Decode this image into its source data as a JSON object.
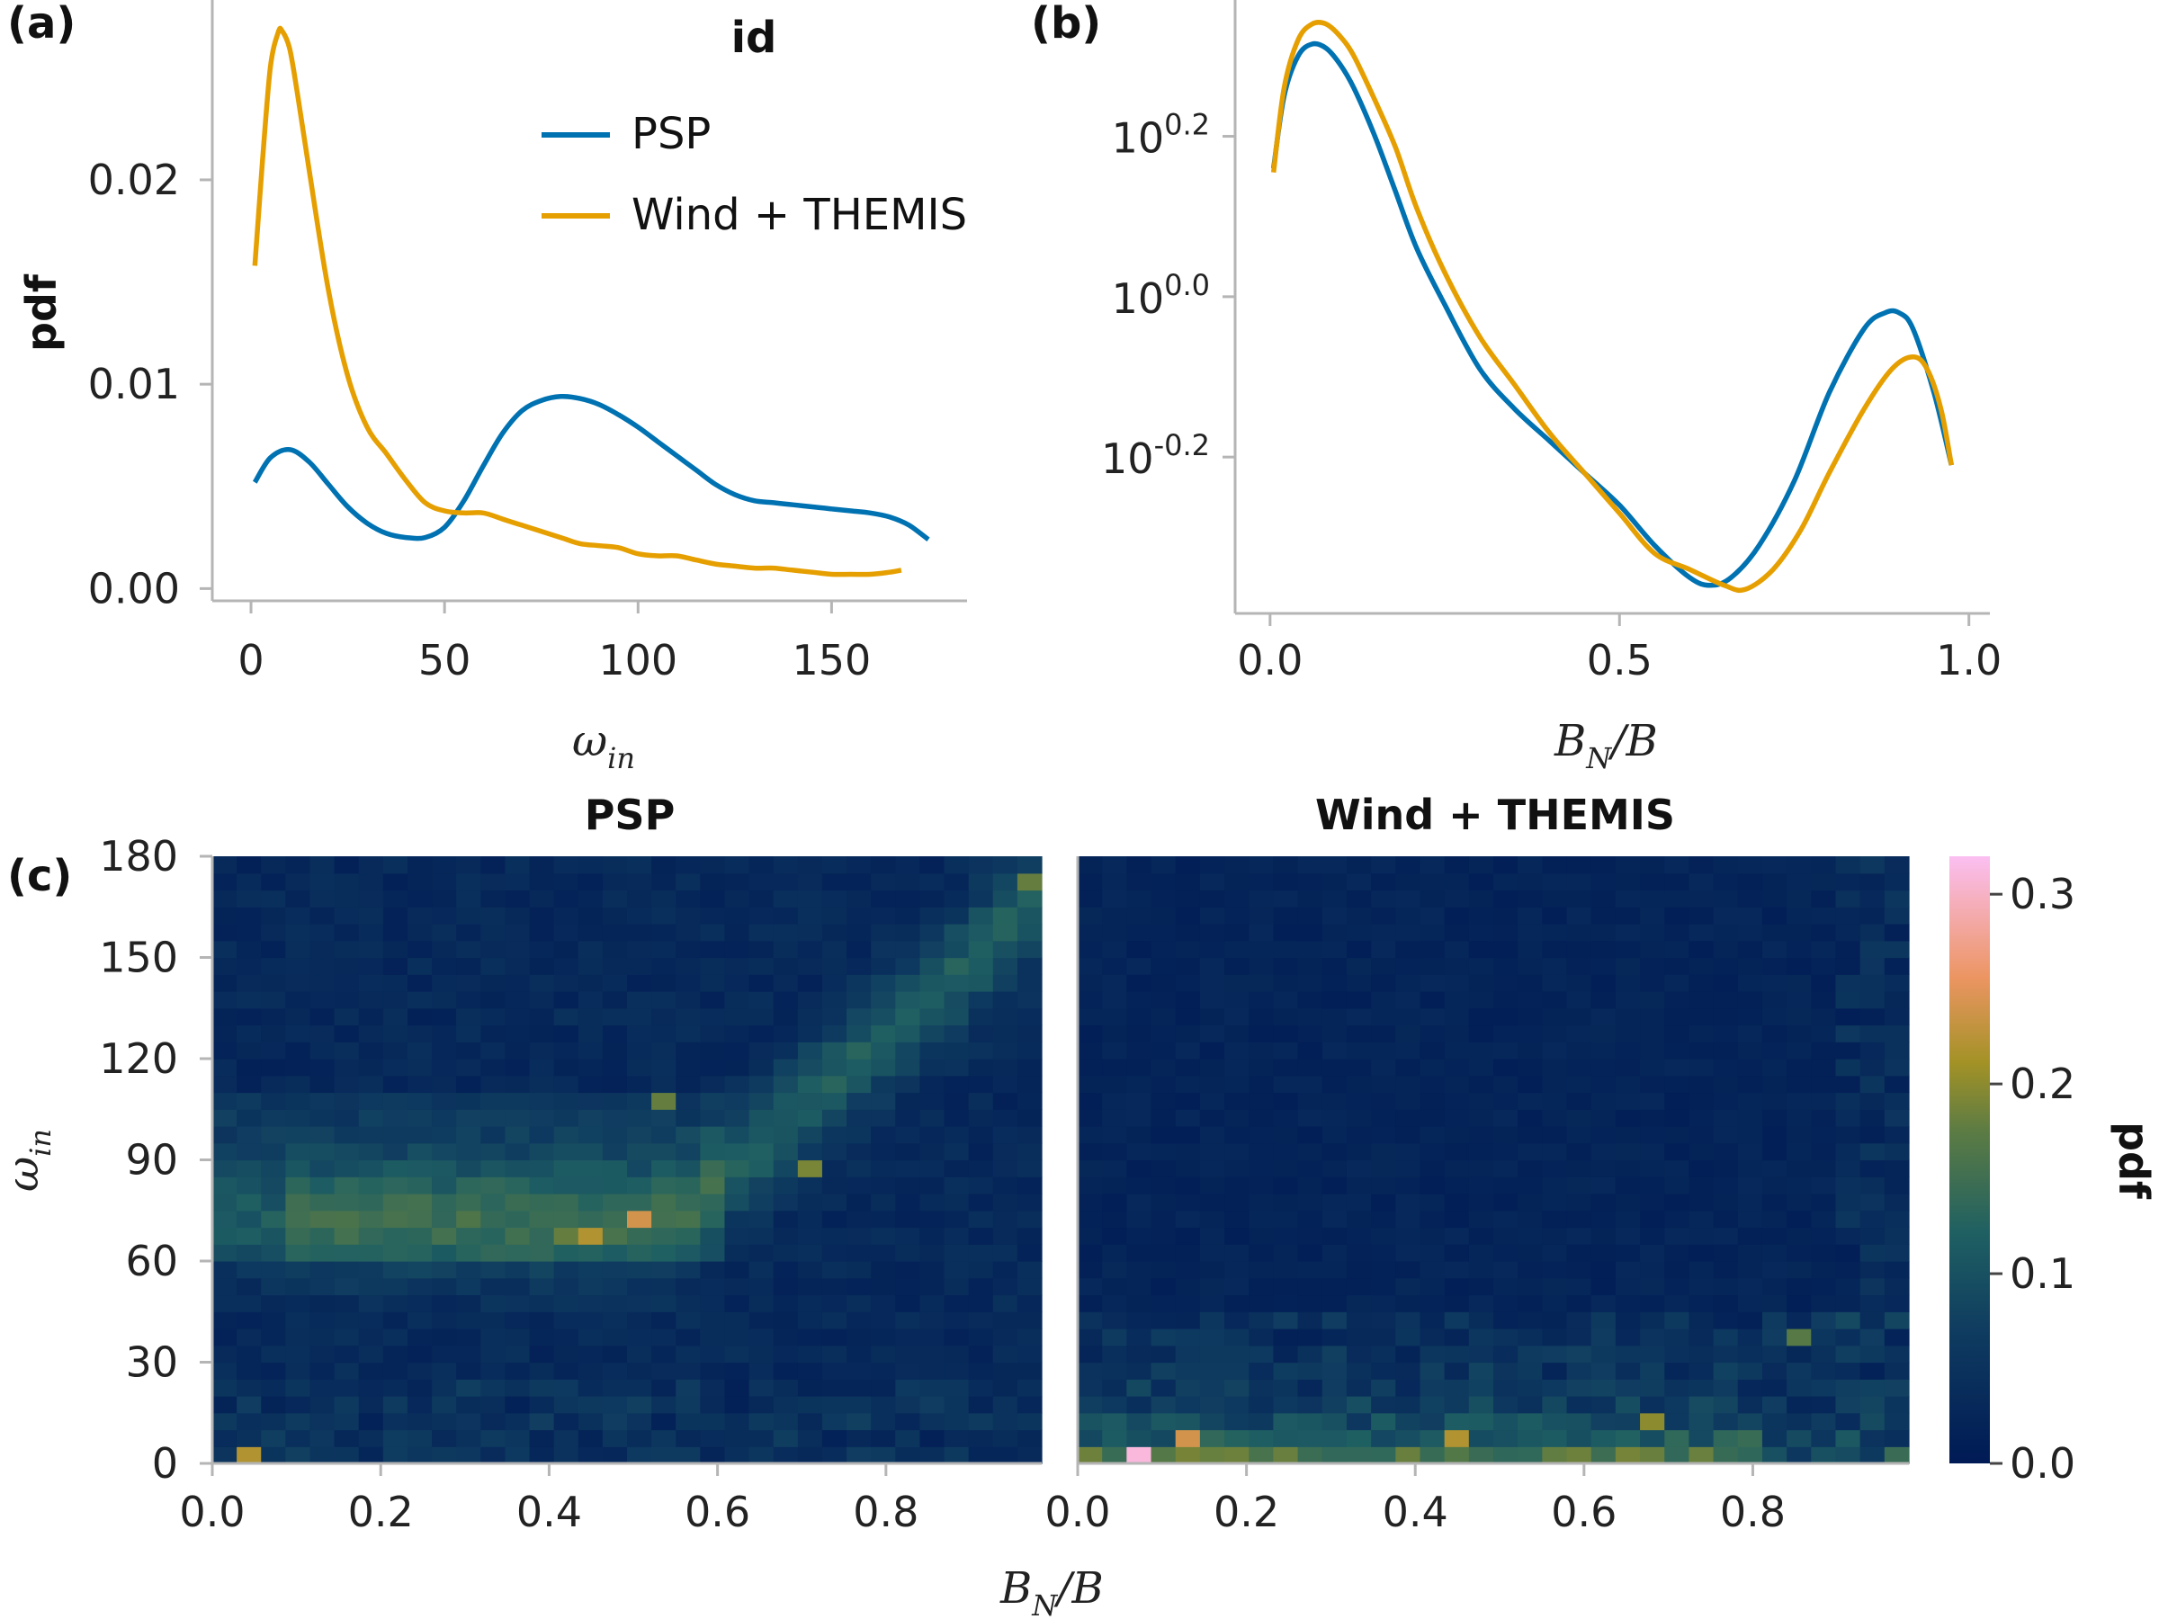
{
  "colors": {
    "psp": "#0072b2",
    "wind": "#e69f00"
  },
  "chart_data": [
    {
      "panel": "(a)",
      "type": "line",
      "xlabel": "ω_in",
      "ylabel": "pdf",
      "xlim": [
        -10,
        185
      ],
      "ylim": [
        -0.0006,
        0.0288
      ],
      "xticks": [
        "0",
        "50",
        "100",
        "150"
      ],
      "xtick_values": [
        0,
        50,
        100,
        150
      ],
      "yticks": [
        "0.00",
        "0.01",
        "0.02"
      ],
      "ytick_values": [
        0,
        0.01,
        0.02
      ],
      "legend": {
        "title": "id",
        "placement": "top-right",
        "entries": [
          "PSP",
          "Wind + THEMIS"
        ]
      },
      "series": [
        {
          "name": "PSP",
          "color": "#0072b2",
          "x": [
            1,
            5,
            10,
            15,
            20,
            25,
            30,
            35,
            40,
            45,
            50,
            55,
            60,
            65,
            70,
            75,
            80,
            85,
            90,
            95,
            100,
            105,
            110,
            115,
            120,
            125,
            130,
            135,
            140,
            145,
            150,
            155,
            160,
            165,
            170,
            175
          ],
          "y": [
            0.0052,
            0.0064,
            0.0068,
            0.0062,
            0.0051,
            0.004,
            0.0032,
            0.0027,
            0.0025,
            0.0025,
            0.003,
            0.0043,
            0.006,
            0.0076,
            0.0087,
            0.0092,
            0.0094,
            0.0093,
            0.009,
            0.0085,
            0.0079,
            0.0072,
            0.0065,
            0.0058,
            0.0051,
            0.0046,
            0.0043,
            0.0042,
            0.0041,
            0.004,
            0.0039,
            0.0038,
            0.0037,
            0.0035,
            0.0031,
            0.0024
          ]
        },
        {
          "name": "Wind + THEMIS",
          "color": "#e69f00",
          "x": [
            1,
            3,
            5,
            7,
            8,
            10,
            12,
            15,
            20,
            25,
            30,
            35,
            40,
            45,
            50,
            55,
            60,
            65,
            70,
            75,
            80,
            85,
            90,
            95,
            100,
            105,
            110,
            115,
            120,
            125,
            130,
            135,
            140,
            145,
            150,
            155,
            160,
            165,
            168
          ],
          "y": [
            0.0158,
            0.021,
            0.0255,
            0.0272,
            0.0273,
            0.0264,
            0.0242,
            0.0205,
            0.0146,
            0.0104,
            0.0079,
            0.0066,
            0.0053,
            0.0042,
            0.0038,
            0.0037,
            0.0037,
            0.0034,
            0.0031,
            0.0028,
            0.0025,
            0.0022,
            0.0021,
            0.002,
            0.0017,
            0.0016,
            0.0016,
            0.0014,
            0.0012,
            0.0011,
            0.001,
            0.001,
            0.0009,
            0.0008,
            0.0007,
            0.0007,
            0.0007,
            0.0008,
            0.0009
          ]
        }
      ]
    },
    {
      "panel": "(b)",
      "type": "line",
      "xlabel": "B_N/B",
      "yscale": "log",
      "xlim": [
        -0.05,
        1.03
      ],
      "ylim_log10": [
        -0.395,
        0.37
      ],
      "xticks": [
        "0.0",
        "0.5",
        "1.0"
      ],
      "xtick_values": [
        0,
        0.5,
        1.0
      ],
      "yticks": [
        "10^-0.2",
        "10^0.0",
        "10^0.2"
      ],
      "ytick_values_log10": [
        -0.2,
        0.0,
        0.2
      ],
      "series": [
        {
          "name": "PSP",
          "color": "#0072b2",
          "x": [
            0.005,
            0.02,
            0.04,
            0.06,
            0.08,
            0.1,
            0.12,
            0.15,
            0.18,
            0.21,
            0.25,
            0.3,
            0.35,
            0.4,
            0.45,
            0.5,
            0.55,
            0.6,
            0.63,
            0.66,
            0.7,
            0.75,
            0.8,
            0.85,
            0.88,
            0.9,
            0.92,
            0.95,
            0.975
          ],
          "log10y": [
            0.16,
            0.25,
            0.3,
            0.315,
            0.31,
            0.29,
            0.26,
            0.2,
            0.13,
            0.06,
            -0.01,
            -0.09,
            -0.14,
            -0.18,
            -0.22,
            -0.26,
            -0.31,
            -0.35,
            -0.36,
            -0.35,
            -0.31,
            -0.23,
            -0.12,
            -0.04,
            -0.02,
            -0.02,
            -0.04,
            -0.12,
            -0.21
          ]
        },
        {
          "name": "Wind + THEMIS",
          "color": "#e69f00",
          "x": [
            0.005,
            0.02,
            0.04,
            0.06,
            0.08,
            0.1,
            0.12,
            0.15,
            0.18,
            0.21,
            0.25,
            0.3,
            0.35,
            0.4,
            0.45,
            0.5,
            0.55,
            0.6,
            0.65,
            0.68,
            0.72,
            0.76,
            0.8,
            0.85,
            0.89,
            0.92,
            0.94,
            0.96,
            0.975
          ],
          "log10y": [
            0.155,
            0.26,
            0.32,
            0.34,
            0.34,
            0.325,
            0.3,
            0.245,
            0.185,
            0.11,
            0.03,
            -0.05,
            -0.11,
            -0.17,
            -0.22,
            -0.27,
            -0.32,
            -0.34,
            -0.36,
            -0.365,
            -0.34,
            -0.29,
            -0.22,
            -0.14,
            -0.09,
            -0.075,
            -0.09,
            -0.14,
            -0.21
          ]
        }
      ]
    },
    {
      "panel": "(c)",
      "type": "heatmap",
      "titles": [
        "PSP",
        "Wind + THEMIS"
      ],
      "xlabel": "B_N/B",
      "ylabel": "ω_in",
      "colorbar_label": "pdf",
      "colorbar_ticks": [
        "0.0",
        "0.1",
        "0.2",
        "0.3"
      ],
      "colorbar_tick_values": [
        0,
        0.1,
        0.2,
        0.3
      ],
      "vmax": 0.32,
      "bins_x": 34,
      "bins_y": 36,
      "xlim": [
        0,
        0.985
      ],
      "ylim": [
        0,
        180
      ],
      "xticks": [
        "0.0",
        "0.2",
        "0.4",
        "0.6",
        "0.8"
      ],
      "xtick_values": [
        0,
        0.2,
        0.4,
        0.6,
        0.8
      ],
      "yticks": [
        "0",
        "30",
        "60",
        "90",
        "120",
        "150",
        "180"
      ],
      "ytick_values": [
        0,
        30,
        60,
        90,
        120,
        150,
        180
      ],
      "psp_hotspots": [
        {
          "x": 0.03,
          "y": 2.5,
          "value": 0.22
        },
        {
          "x": 0.46,
          "y": 67.5,
          "value": 0.22
        },
        {
          "x": 0.52,
          "y": 72.5,
          "value": 0.24
        },
        {
          "x": 0.41,
          "y": 67.5,
          "value": 0.18
        },
        {
          "x": 0.7,
          "y": 87.5,
          "value": 0.19
        },
        {
          "x": 0.55,
          "y": 107.5,
          "value": 0.18
        },
        {
          "x": 0.96,
          "y": 172.5,
          "value": 0.18
        }
      ],
      "wind_hotspots": [
        {
          "x": 0.06,
          "y": 2.5,
          "value": 0.31
        },
        {
          "x": 0.12,
          "y": 7.5,
          "value": 0.24
        },
        {
          "x": 0.45,
          "y": 7.5,
          "value": 0.22
        },
        {
          "x": 0.67,
          "y": 12.5,
          "value": 0.2
        },
        {
          "x": 0.85,
          "y": 37.5,
          "value": 0.17
        }
      ]
    }
  ],
  "texts": {
    "panel_a": "(a)",
    "panel_b": "(b)",
    "panel_c": "(c)",
    "legend_title": "id",
    "legend_psp": "PSP",
    "legend_wind": "Wind + THEMIS",
    "pdf_label": "pdf",
    "title_psp": "PSP",
    "title_wind": "Wind + THEMIS",
    "omega": "ω",
    "omega_sub": "in",
    "bn": "B",
    "bn_sub": "N",
    "bn_rest": "/B"
  }
}
